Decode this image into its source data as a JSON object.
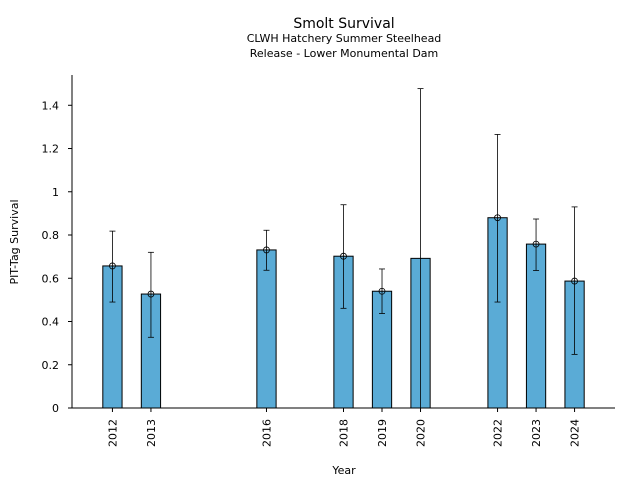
{
  "chart_data": {
    "type": "bar",
    "title": "Smolt Survival",
    "subtitle_lines": [
      "CLWH Hatchery Summer Steelhead",
      "Release - Lower Monumental Dam"
    ],
    "xlabel": "Year",
    "ylabel": "PIT-Tag Survival",
    "xlim": [
      2010.95,
      2025.05
    ],
    "ylim": [
      0,
      1.54
    ],
    "yticks": [
      0,
      0.2,
      0.4,
      0.6,
      0.8,
      1,
      1.2,
      1.4
    ],
    "ytick_labels": [
      "0",
      "0.2",
      "0.4",
      "0.6",
      "0.8",
      "1",
      "1.2",
      "1.4"
    ],
    "grid": false,
    "bar_color": "#5aabd6",
    "bar_width_years": 0.5,
    "x": [
      2012,
      2013,
      2016,
      2018,
      2019,
      2020,
      2022,
      2023,
      2024
    ],
    "x_labels": [
      "2012",
      "2013",
      "2016",
      "2018",
      "2019",
      "2020",
      "2022",
      "2023",
      "2024"
    ],
    "values": [
      0.657,
      0.527,
      0.731,
      0.702,
      0.54,
      0.692,
      0.88,
      0.758,
      0.587
    ],
    "point_estimates": [
      0.657,
      0.527,
      0.731,
      0.702,
      0.54,
      null,
      0.88,
      0.758,
      0.587
    ],
    "error_lower": [
      0.49,
      0.327,
      0.637,
      0.461,
      0.437,
      0.0,
      0.49,
      0.636,
      0.248
    ],
    "error_upper": [
      0.818,
      0.72,
      0.822,
      0.94,
      0.643,
      1.477,
      1.265,
      0.874,
      0.93
    ]
  }
}
